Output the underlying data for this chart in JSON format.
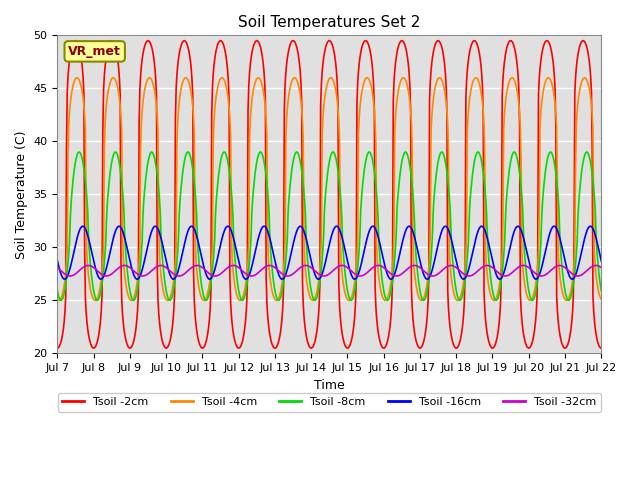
{
  "title": "Soil Temperatures Set 2",
  "xlabel": "Time",
  "ylabel": "Soil Temperature (C)",
  "ylim": [
    20,
    50
  ],
  "n_days": 15,
  "x_tick_labels": [
    "Jul 7",
    "Jul 8",
    "Jul 9",
    "Jul 10",
    "Jul 11",
    "Jul 12",
    "Jul 13",
    "Jul 14",
    "Jul 15",
    "Jul 16",
    "Jul 17",
    "Jul 18",
    "Jul 19",
    "Jul 20",
    "Jul 21",
    "Jul 22"
  ],
  "annotation_text": "VR_met",
  "bg_color": "#e0e0e0",
  "series": [
    {
      "label": "Tsoil -2cm",
      "color": "#ff0000",
      "mean": 35.0,
      "amp": 14.5,
      "phase": 0.25,
      "power": 5.0,
      "delay": 0.0
    },
    {
      "label": "Tsoil -4cm",
      "color": "#ff8800",
      "mean": 35.5,
      "amp": 10.5,
      "phase": 0.25,
      "power": 3.5,
      "delay": 0.04
    },
    {
      "label": "Tsoil -8cm",
      "color": "#00dd00",
      "mean": 32.0,
      "amp": 7.0,
      "phase": 0.25,
      "power": 1.5,
      "delay": 0.1
    },
    {
      "label": "Tsoil -16cm",
      "color": "#0000ff",
      "mean": 29.5,
      "amp": 2.5,
      "phase": 0.25,
      "power": 1.0,
      "delay": 0.2
    },
    {
      "label": "Tsoil -32cm",
      "color": "#cc00cc",
      "mean": 27.8,
      "amp": 0.5,
      "phase": 0.25,
      "power": 1.0,
      "delay": 0.35
    }
  ],
  "legend_ncol": 5,
  "grid_color": "#ffffff",
  "linewidth": 1.2
}
